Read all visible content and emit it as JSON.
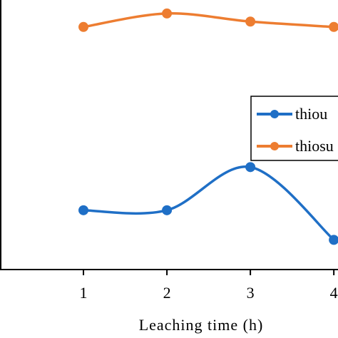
{
  "chart_data": {
    "type": "line",
    "xlabel": "Leaching  time  (h)",
    "ylabel": "",
    "title": "",
    "x": [
      1,
      2,
      3,
      4
    ],
    "x_tick_labels": [
      "1",
      "2",
      "3",
      "4"
    ],
    "xlim": [
      0,
      4.05
    ],
    "ylim": [
      0,
      100
    ],
    "grid": false,
    "legend": {
      "placement": "right",
      "entries": [
        "thiou",
        "thiosu"
      ]
    },
    "series": [
      {
        "name": "thiou",
        "color": "#1f6fc6",
        "values": [
          22,
          22,
          38,
          11
        ]
      },
      {
        "name": "thiosu",
        "color": "#ed7d31",
        "values": [
          90,
          95,
          92,
          90
        ]
      }
    ]
  }
}
